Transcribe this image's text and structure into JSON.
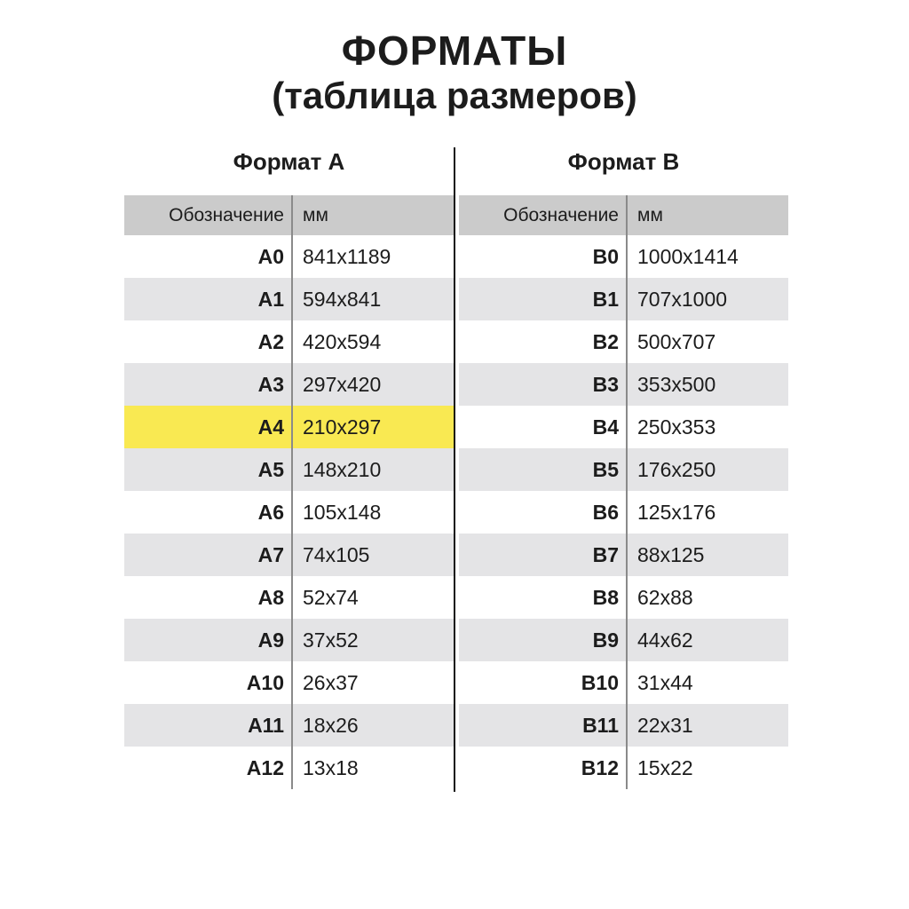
{
  "page": {
    "title": "ФОРМАТЫ",
    "subtitle": "(таблица размеров)"
  },
  "chart_data": [
    {
      "type": "table",
      "title": "Формат А",
      "columns": [
        "Обозначение",
        "мм"
      ],
      "rows": [
        [
          "A0",
          "841x1189"
        ],
        [
          "A1",
          "594x841"
        ],
        [
          "A2",
          "420x594"
        ],
        [
          "A3",
          "297x420"
        ],
        [
          "A4",
          "210x297"
        ],
        [
          "A5",
          "148x210"
        ],
        [
          "A6",
          "105x148"
        ],
        [
          "A7",
          "74x105"
        ],
        [
          "A8",
          "52x74"
        ],
        [
          "A9",
          "37x52"
        ],
        [
          "A10",
          "26x37"
        ],
        [
          "A11",
          "18x26"
        ],
        [
          "A12",
          "13x18"
        ]
      ],
      "highlight_row": "A4"
    },
    {
      "type": "table",
      "title": "Формат B",
      "columns": [
        "Обозначение",
        "мм"
      ],
      "rows": [
        [
          "B0",
          "1000x1414"
        ],
        [
          "B1",
          "707x1000"
        ],
        [
          "B2",
          "500x707"
        ],
        [
          "B3",
          "353x500"
        ],
        [
          "B4",
          "250x353"
        ],
        [
          "B5",
          "176x250"
        ],
        [
          "B6",
          "125x176"
        ],
        [
          "B7",
          "88x125"
        ],
        [
          "B8",
          "62x88"
        ],
        [
          "B9",
          "44x62"
        ],
        [
          "B10",
          "31x44"
        ],
        [
          "B11",
          "22x31"
        ],
        [
          "B12",
          "15x22"
        ]
      ],
      "highlight_row": null
    }
  ],
  "colors": {
    "header_row_bg": "#cbcbcb",
    "stripe_row_bg": "#e4e4e6",
    "highlight_row_bg": "#f9e952",
    "divider_line": "#8a8a8a",
    "center_line": "#141414",
    "text": "#1c1c1c"
  }
}
